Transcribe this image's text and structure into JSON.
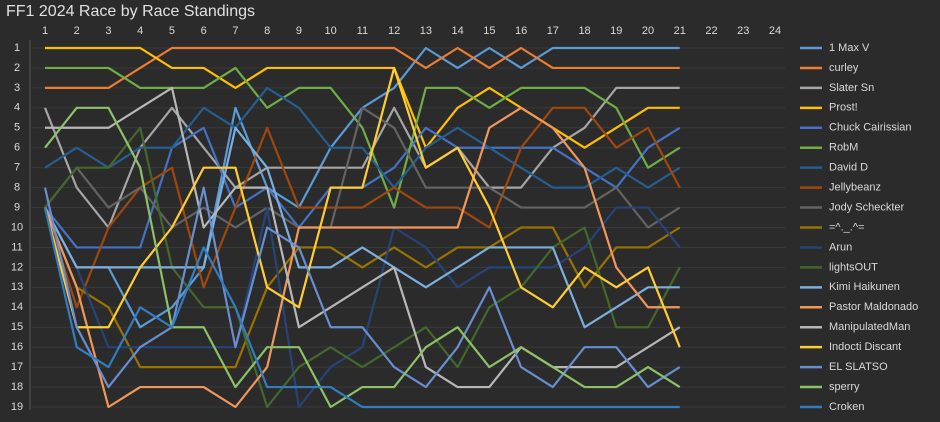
{
  "chart_data": {
    "type": "line",
    "title": "FF1 2024 Race by Race Standings",
    "x": [
      1,
      2,
      3,
      4,
      5,
      6,
      7,
      8,
      9,
      10,
      11,
      12,
      13,
      14,
      15,
      16,
      17,
      18,
      19,
      20,
      21
    ],
    "xlim": [
      1,
      24
    ],
    "xticks": [
      1,
      2,
      3,
      4,
      5,
      6,
      7,
      8,
      9,
      10,
      11,
      12,
      13,
      14,
      15,
      16,
      17,
      18,
      19,
      20,
      21,
      22,
      23,
      24
    ],
    "ylim": [
      19,
      1
    ],
    "yticks": [
      1,
      2,
      3,
      4,
      5,
      6,
      7,
      8,
      9,
      10,
      11,
      12,
      13,
      14,
      15,
      16,
      17,
      18,
      19
    ],
    "grid": true,
    "legend": "right",
    "series": [
      {
        "name": "1 Max V",
        "color": "#5b9bd5",
        "values": [
          9,
          12,
          12,
          15,
          14,
          12,
          4,
          8,
          9,
          6,
          4,
          3,
          1,
          2,
          1,
          2,
          1,
          1,
          1,
          1,
          1
        ]
      },
      {
        "name": "curley",
        "color": "#ed7d31",
        "values": [
          3,
          3,
          3,
          2,
          1,
          1,
          1,
          1,
          1,
          1,
          1,
          1,
          2,
          1,
          2,
          1,
          2,
          2,
          2,
          2,
          2
        ]
      },
      {
        "name": "Slater Sn",
        "color": "#a5a5a5",
        "values": [
          4,
          8,
          10,
          6,
          4,
          6,
          8,
          7,
          7,
          7,
          7,
          4,
          7,
          6,
          8,
          8,
          6,
          5,
          3,
          3,
          3
        ]
      },
      {
        "name": "Prost!",
        "color": "#ffc000",
        "values": [
          1,
          1,
          1,
          1,
          2,
          2,
          3,
          2,
          2,
          2,
          2,
          2,
          6,
          4,
          3,
          4,
          5,
          6,
          5,
          4,
          4
        ]
      },
      {
        "name": "Chuck Cairissian",
        "color": "#4472c4",
        "values": [
          9,
          11,
          11,
          11,
          6,
          5,
          9,
          8,
          10,
          8,
          8,
          7,
          5,
          6,
          6,
          6,
          6,
          7,
          8,
          6,
          5
        ]
      },
      {
        "name": "RobM",
        "color": "#70ad47",
        "values": [
          2,
          2,
          2,
          3,
          3,
          3,
          2,
          4,
          3,
          3,
          5,
          9,
          3,
          3,
          4,
          3,
          3,
          3,
          4,
          7,
          6
        ]
      },
      {
        "name": "David D",
        "color": "#255e91",
        "values": [
          7,
          6,
          7,
          6,
          6,
          4,
          5,
          3,
          4,
          6,
          6,
          8,
          6,
          5,
          6,
          7,
          8,
          8,
          7,
          8,
          7
        ]
      },
      {
        "name": "Jellybeanz",
        "color": "#9e480e",
        "values": [
          9,
          14,
          10,
          8,
          7,
          13,
          9,
          5,
          9,
          9,
          9,
          8,
          9,
          9,
          10,
          6,
          4,
          4,
          6,
          5,
          8
        ]
      },
      {
        "name": "Jody Scheckter",
        "color": "#636363",
        "values": [
          9,
          7,
          9,
          8,
          10,
          9,
          10,
          9,
          10,
          10,
          4,
          5,
          8,
          8,
          8,
          9,
          9,
          9,
          8,
          10,
          9
        ]
      },
      {
        "name": "=^._.^=",
        "color": "#997300",
        "values": [
          9,
          13,
          14,
          17,
          17,
          17,
          17,
          13,
          11,
          11,
          12,
          11,
          12,
          11,
          11,
          10,
          10,
          13,
          11,
          11,
          10
        ]
      },
      {
        "name": "Arun",
        "color": "#264478",
        "values": [
          9,
          12,
          16,
          16,
          16,
          16,
          16,
          9,
          19,
          17,
          16,
          10,
          11,
          13,
          12,
          12,
          12,
          11,
          9,
          9,
          11
        ]
      },
      {
        "name": "lightsOUT",
        "color": "#43682b",
        "values": [
          9,
          7,
          7,
          5,
          12,
          14,
          14,
          19,
          17,
          16,
          17,
          16,
          15,
          17,
          14,
          13,
          11,
          10,
          15,
          15,
          12
        ]
      },
      {
        "name": "Kimi Haikunen",
        "color": "#7cafdd",
        "values": [
          9,
          12,
          12,
          12,
          12,
          12,
          5,
          7,
          12,
          12,
          11,
          12,
          13,
          12,
          11,
          11,
          11,
          15,
          14,
          13,
          13
        ]
      },
      {
        "name": "Pastor Maldonado",
        "color": "#f1975a",
        "values": [
          9,
          13,
          19,
          18,
          18,
          18,
          19,
          17,
          10,
          10,
          10,
          10,
          10,
          10,
          5,
          4,
          5,
          7,
          12,
          14,
          14
        ]
      },
      {
        "name": "ManipulatedMan",
        "color": "#b7b7b7",
        "values": [
          5,
          5,
          5,
          4,
          3,
          10,
          8,
          8,
          15,
          14,
          13,
          12,
          17,
          18,
          18,
          16,
          17,
          17,
          17,
          16,
          15
        ]
      },
      {
        "name": "Indocti Discant",
        "color": "#ffcd33",
        "values": [
          9,
          15,
          15,
          12,
          10,
          7,
          7,
          13,
          14,
          8,
          8,
          2,
          7,
          6,
          9,
          13,
          14,
          12,
          13,
          12,
          16
        ]
      },
      {
        "name": "EL SLATSO",
        "color": "#698ed0",
        "values": [
          8,
          15,
          18,
          16,
          15,
          8,
          16,
          10,
          11,
          15,
          15,
          17,
          18,
          16,
          13,
          17,
          18,
          16,
          16,
          18,
          17
        ]
      },
      {
        "name": "sperry",
        "color": "#8cc168",
        "values": [
          6,
          4,
          4,
          7,
          15,
          15,
          18,
          16,
          16,
          19,
          18,
          18,
          16,
          15,
          17,
          16,
          17,
          18,
          18,
          17,
          18
        ]
      },
      {
        "name": "Croken",
        "color": "#327dc2",
        "values": [
          9,
          16,
          17,
          14,
          15,
          11,
          14,
          18,
          18,
          18,
          19,
          19,
          19,
          19,
          19,
          19,
          19,
          19,
          19,
          19,
          19
        ]
      }
    ]
  }
}
